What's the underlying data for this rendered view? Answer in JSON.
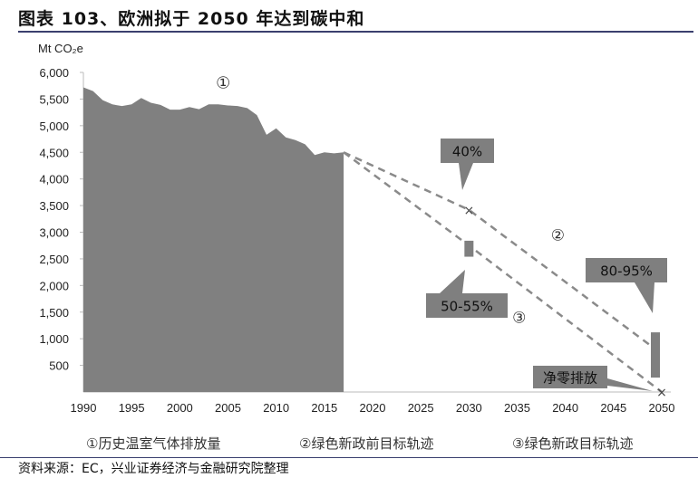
{
  "title": "图表 103、欧洲拟于 2050 年达到碳中和",
  "source": "资料来源：EC，兴业证券经济与金融研究院整理",
  "chart_data": {
    "type": "area",
    "ylabel": "Mt CO₂e",
    "ylim": [
      0,
      6000
    ],
    "xlim": [
      1990,
      2050
    ],
    "yticks": [
      500,
      1000,
      1500,
      2000,
      2500,
      3000,
      3500,
      4000,
      4500,
      5000,
      5500,
      6000
    ],
    "xticks": [
      1990,
      1995,
      2000,
      2005,
      2010,
      2015,
      2020,
      2025,
      2030,
      2035,
      2040,
      2045,
      2050
    ],
    "colors": {
      "area": "#808080",
      "dash": "#8a8a8a",
      "callout": "#7f7f7f"
    },
    "series": [
      {
        "name": "①历史温室气体排放量",
        "type": "area",
        "label": "①",
        "x": [
          1990,
          1991,
          1992,
          1993,
          1994,
          1995,
          1996,
          1997,
          1998,
          1999,
          2000,
          2001,
          2002,
          2003,
          2004,
          2005,
          2006,
          2007,
          2008,
          2009,
          2010,
          2011,
          2012,
          2013,
          2014,
          2015,
          2016,
          2017
        ],
        "y": [
          5720,
          5650,
          5480,
          5400,
          5370,
          5400,
          5520,
          5430,
          5390,
          5300,
          5300,
          5350,
          5310,
          5400,
          5400,
          5380,
          5370,
          5330,
          5200,
          4830,
          4950,
          4780,
          4730,
          4650,
          4450,
          4500,
          4480,
          4500
        ]
      },
      {
        "name": "②绿色新政前目标轨迹",
        "type": "dashed",
        "label": "②",
        "x": [
          2017,
          2030,
          2049
        ],
        "y": [
          4500,
          3420,
          850
        ]
      },
      {
        "name": "③绿色新政目标轨迹",
        "type": "dashed",
        "label": "③",
        "x": [
          2017,
          2030,
          2050
        ],
        "y": [
          4500,
          2750,
          0
        ]
      }
    ],
    "ranges": [
      {
        "x": 2030,
        "y": [
          2540,
          2840
        ]
      },
      {
        "x": 2050,
        "y": [
          270,
          1120
        ]
      }
    ],
    "markers": [
      {
        "x": 2030,
        "y": 3420
      },
      {
        "x": 2050,
        "y": 0
      }
    ],
    "annotations": [
      {
        "text": "40%",
        "x": 2030,
        "y": 3420
      },
      {
        "text": "50-55%",
        "x": 2030,
        "y": 2540
      },
      {
        "text": "80-95%",
        "x": 2050,
        "y": 1120
      },
      {
        "text": "净零排放",
        "x": 2050,
        "y": 0
      }
    ]
  }
}
